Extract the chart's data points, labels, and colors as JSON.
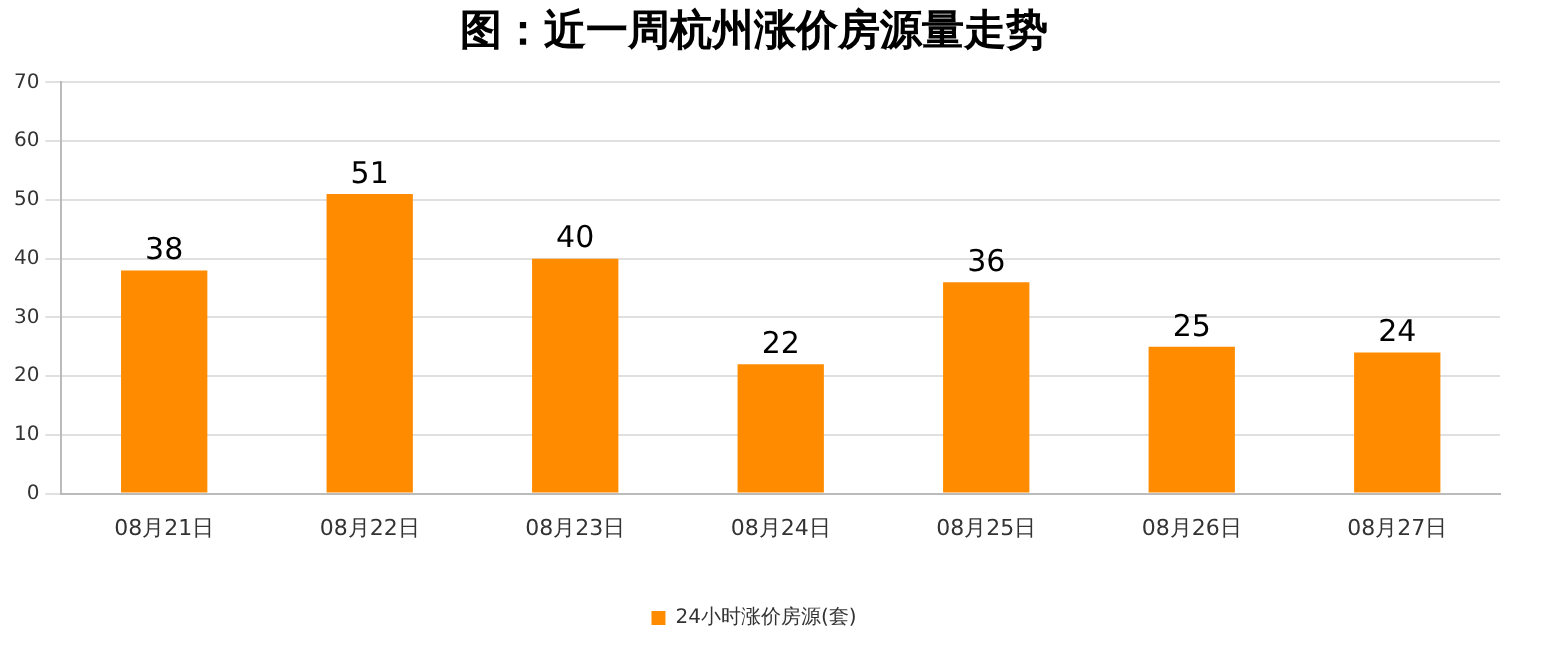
{
  "chart_data": {
    "type": "bar",
    "title": "图：近一周杭州涨价房源量走势",
    "categories": [
      "08月21日",
      "08月22日",
      "08月23日",
      "08月24日",
      "08月25日",
      "08月26日",
      "08月27日"
    ],
    "series": [
      {
        "name": "24小时涨价房源(套)",
        "color": "#ff8c00",
        "values": [
          38,
          51,
          40,
          22,
          36,
          25,
          24
        ]
      }
    ],
    "ylim": [
      0,
      70
    ],
    "yticks": [
      0,
      10,
      20,
      30,
      40,
      50,
      60,
      70
    ],
    "grid": "y",
    "legend": "bottom",
    "data_labels": true
  }
}
